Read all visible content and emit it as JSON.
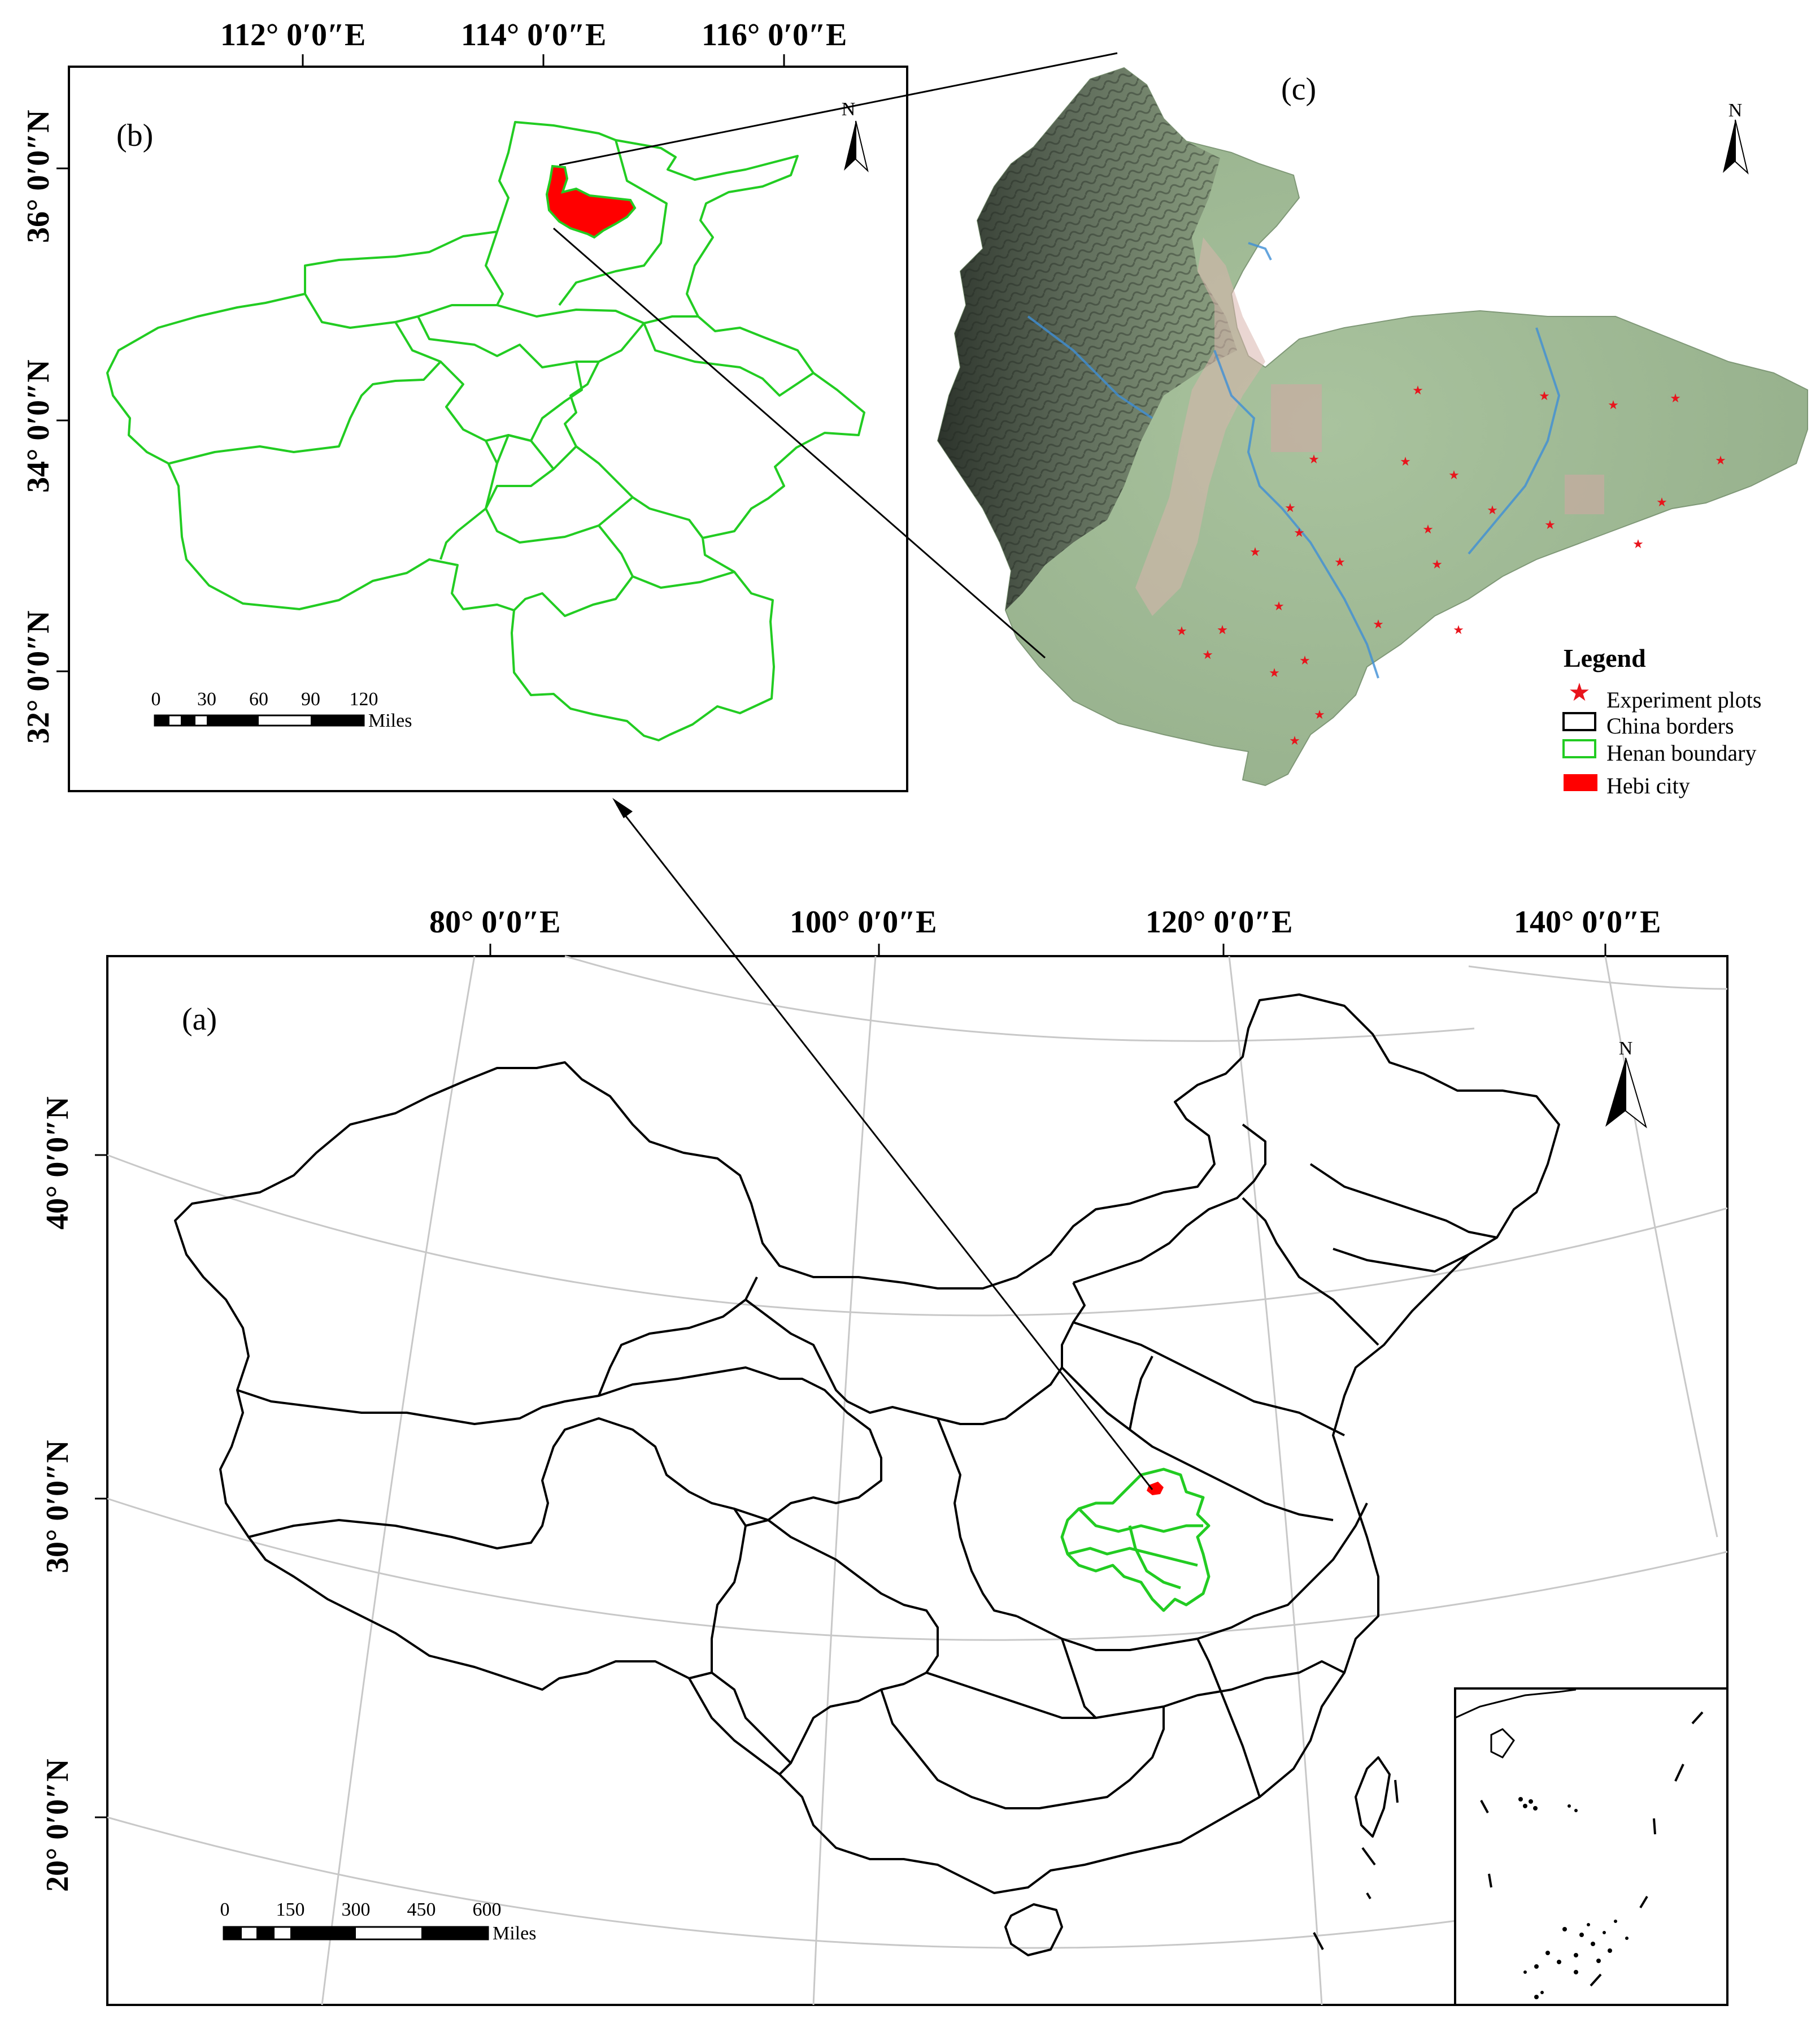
{
  "panels": {
    "a": {
      "label": "(a)",
      "top_coords": [
        "80° 0′0″E",
        "100° 0′0″E",
        "120° 0′0″E",
        "140° 0′0″E"
      ],
      "left_coords": [
        "40° 0′0″N",
        "30° 0′0″N",
        "20° 0′0″N"
      ],
      "scale": {
        "ticks": [
          "0",
          "150",
          "300",
          "450",
          "600"
        ],
        "unit": "Miles"
      },
      "north": "N"
    },
    "b": {
      "label": "(b)",
      "top_coords": [
        "112° 0′0″E",
        "114° 0′0″E",
        "116° 0′0″E"
      ],
      "left_coords": [
        "36° 0′0″N",
        "34° 0′0″N",
        "32° 0′0″N"
      ],
      "scale": {
        "ticks": [
          "0",
          "30",
          "60",
          "90",
          "120"
        ],
        "unit": "Miles"
      },
      "north": "N"
    },
    "c": {
      "label": "(c)",
      "north": "N"
    }
  },
  "legend": {
    "title": "Legend",
    "items": [
      {
        "label": "Experiment  plots",
        "symbol": "star",
        "color": "#e8141c"
      },
      {
        "label": "China borders",
        "symbol": "rect-outline",
        "color": "#000000"
      },
      {
        "label": "Henan boundary",
        "symbol": "rect-outline",
        "color": "#22cc22"
      },
      {
        "label": "Hebi city",
        "symbol": "rect-fill",
        "color": "#ff0000"
      }
    ]
  },
  "colors": {
    "henan_boundary": "#22cc22",
    "hebi_city": "#ff0000",
    "china_borders": "#000000",
    "graticule": "#bbbbbb",
    "terrain_plain": "#9db894",
    "terrain_mountain": "#5f6f5c",
    "plot_marker": "#e8141c"
  }
}
